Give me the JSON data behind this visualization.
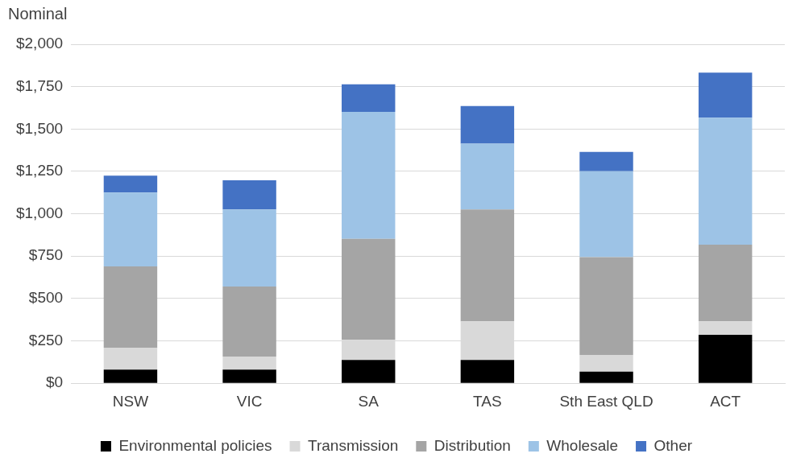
{
  "chart_data": {
    "type": "bar",
    "stacked": true,
    "ylabel": "Nominal",
    "categories": [
      "NSW",
      "VIC",
      "SA",
      "TAS",
      "Sth East QLD",
      "ACT"
    ],
    "series": [
      {
        "name": "Environmental policies",
        "color": "#000000",
        "values": [
          80,
          80,
          138,
          138,
          69,
          286
        ]
      },
      {
        "name": "Transmission",
        "color": "#d9d9d9",
        "values": [
          130,
          78,
          118,
          227,
          98,
          79
        ]
      },
      {
        "name": "Distribution",
        "color": "#a5a5a5",
        "values": [
          480,
          413,
          596,
          660,
          577,
          453
        ]
      },
      {
        "name": "Wholesale",
        "color": "#9dc3e6",
        "values": [
          435,
          454,
          749,
          389,
          507,
          749
        ]
      },
      {
        "name": "Other",
        "color": "#4472c4",
        "values": [
          100,
          172,
          163,
          221,
          114,
          266
        ]
      }
    ],
    "ylim": [
      0,
      2000
    ],
    "yticks": [
      {
        "value": 0,
        "label": "$0"
      },
      {
        "value": 250,
        "label": "$250"
      },
      {
        "value": 500,
        "label": "$500"
      },
      {
        "value": 750,
        "label": "$750"
      },
      {
        "value": 1000,
        "label": "$1,000"
      },
      {
        "value": 1250,
        "label": "$1,250"
      },
      {
        "value": 1500,
        "label": "$1,500"
      },
      {
        "value": 1750,
        "label": "$1,750"
      },
      {
        "value": 2000,
        "label": "$2,000"
      }
    ],
    "grid": "y",
    "legend": "bottom"
  }
}
